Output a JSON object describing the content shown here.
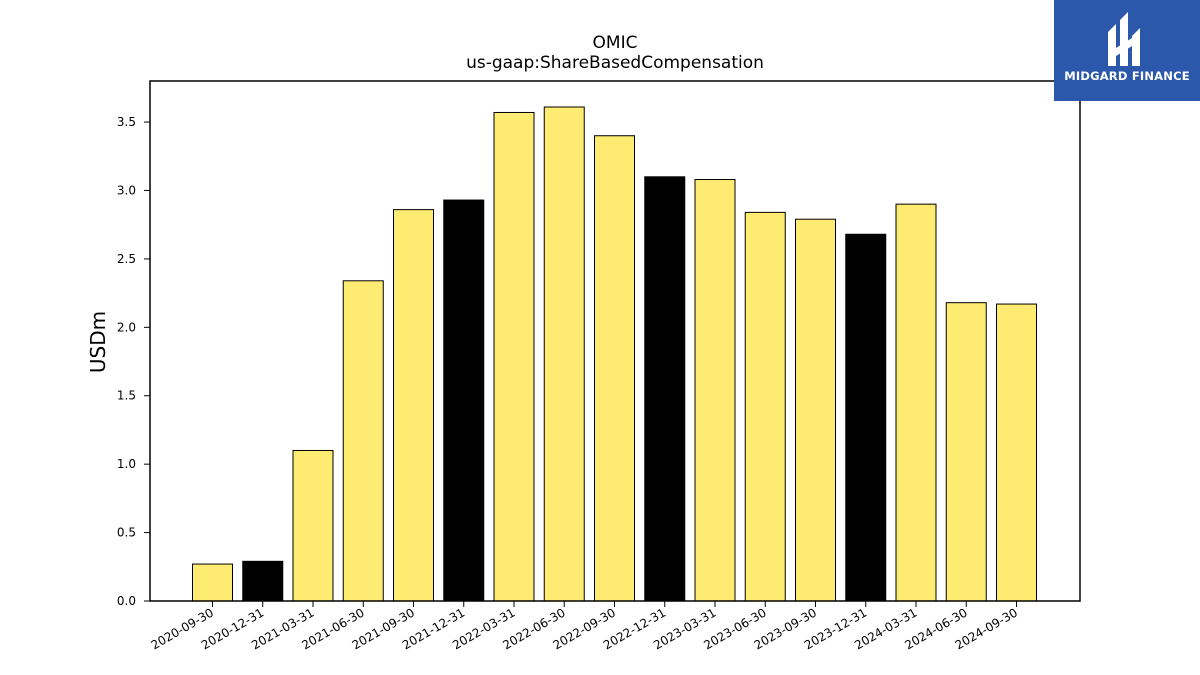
{
  "logo": {
    "text": "MIDGARD FINANCE"
  },
  "colors": {
    "normal_bar": "#fdeb72",
    "q4_bar": "#000000",
    "logo_bg": "#2b58ab"
  },
  "chart_data": {
    "type": "bar",
    "title": "OMIC",
    "subtitle": "us-gaap:ShareBasedCompensation",
    "xlabel": "",
    "ylabel": "USDm",
    "ylim": [
      0,
      3.8
    ],
    "yticks": [
      "0.0",
      "0.5",
      "1.0",
      "1.5",
      "2.0",
      "2.5",
      "3.0",
      "3.5"
    ],
    "categories": [
      "2020-09-30",
      "2020-12-31",
      "2021-03-31",
      "2021-06-30",
      "2021-09-30",
      "2021-12-31",
      "2022-03-31",
      "2022-06-30",
      "2022-09-30",
      "2022-12-31",
      "2023-03-31",
      "2023-06-30",
      "2023-09-30",
      "2023-12-31",
      "2024-03-31",
      "2024-06-30",
      "2024-09-30"
    ],
    "values": [
      0.27,
      0.29,
      1.1,
      2.34,
      2.86,
      2.93,
      3.57,
      3.61,
      3.4,
      3.1,
      3.08,
      2.84,
      2.79,
      2.68,
      2.9,
      2.18,
      2.17
    ],
    "highlight": [
      false,
      true,
      false,
      false,
      false,
      true,
      false,
      false,
      false,
      true,
      false,
      false,
      false,
      true,
      false,
      false,
      false
    ],
    "grid": false,
    "legend": "none"
  }
}
